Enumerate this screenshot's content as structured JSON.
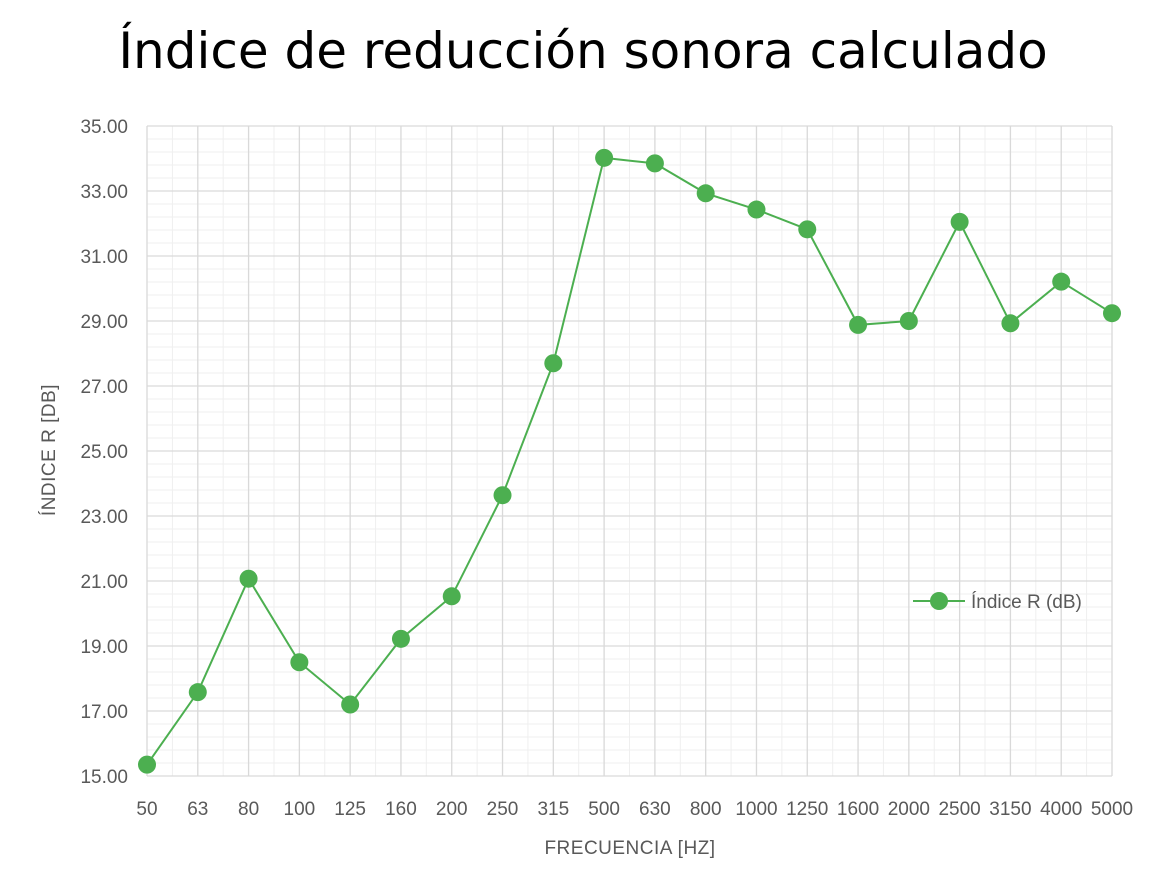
{
  "chart_data": {
    "type": "line",
    "title": "Índice de reducción sonora calculado",
    "xlabel": "FRECUENCIA [HZ]",
    "ylabel": "ÍNDICE R [DB]",
    "categories": [
      "50",
      "63",
      "80",
      "100",
      "125",
      "160",
      "200",
      "250",
      "315",
      "500",
      "630",
      "800",
      "1000",
      "1250",
      "1600",
      "2000",
      "2500",
      "3150",
      "4000",
      "5000"
    ],
    "series": [
      {
        "name": "Índice R (dB)",
        "values": [
          15.35,
          17.58,
          21.07,
          18.5,
          17.2,
          19.22,
          20.53,
          23.64,
          27.7,
          34.02,
          33.85,
          32.93,
          32.43,
          31.82,
          28.88,
          29.0,
          32.05,
          28.93,
          30.21,
          29.24
        ]
      }
    ],
    "ylim": [
      15.0,
      35.0
    ],
    "yticks": [
      "15.00",
      "17.00",
      "19.00",
      "21.00",
      "23.00",
      "25.00",
      "27.00",
      "29.00",
      "31.00",
      "33.00",
      "35.00"
    ],
    "grid": "major and minor",
    "legend_position": "right",
    "colors": {
      "series": "#4caf50",
      "marker": "#4caf50",
      "grid_major": "#d9d9d9",
      "grid_minor": "#efefef"
    }
  }
}
